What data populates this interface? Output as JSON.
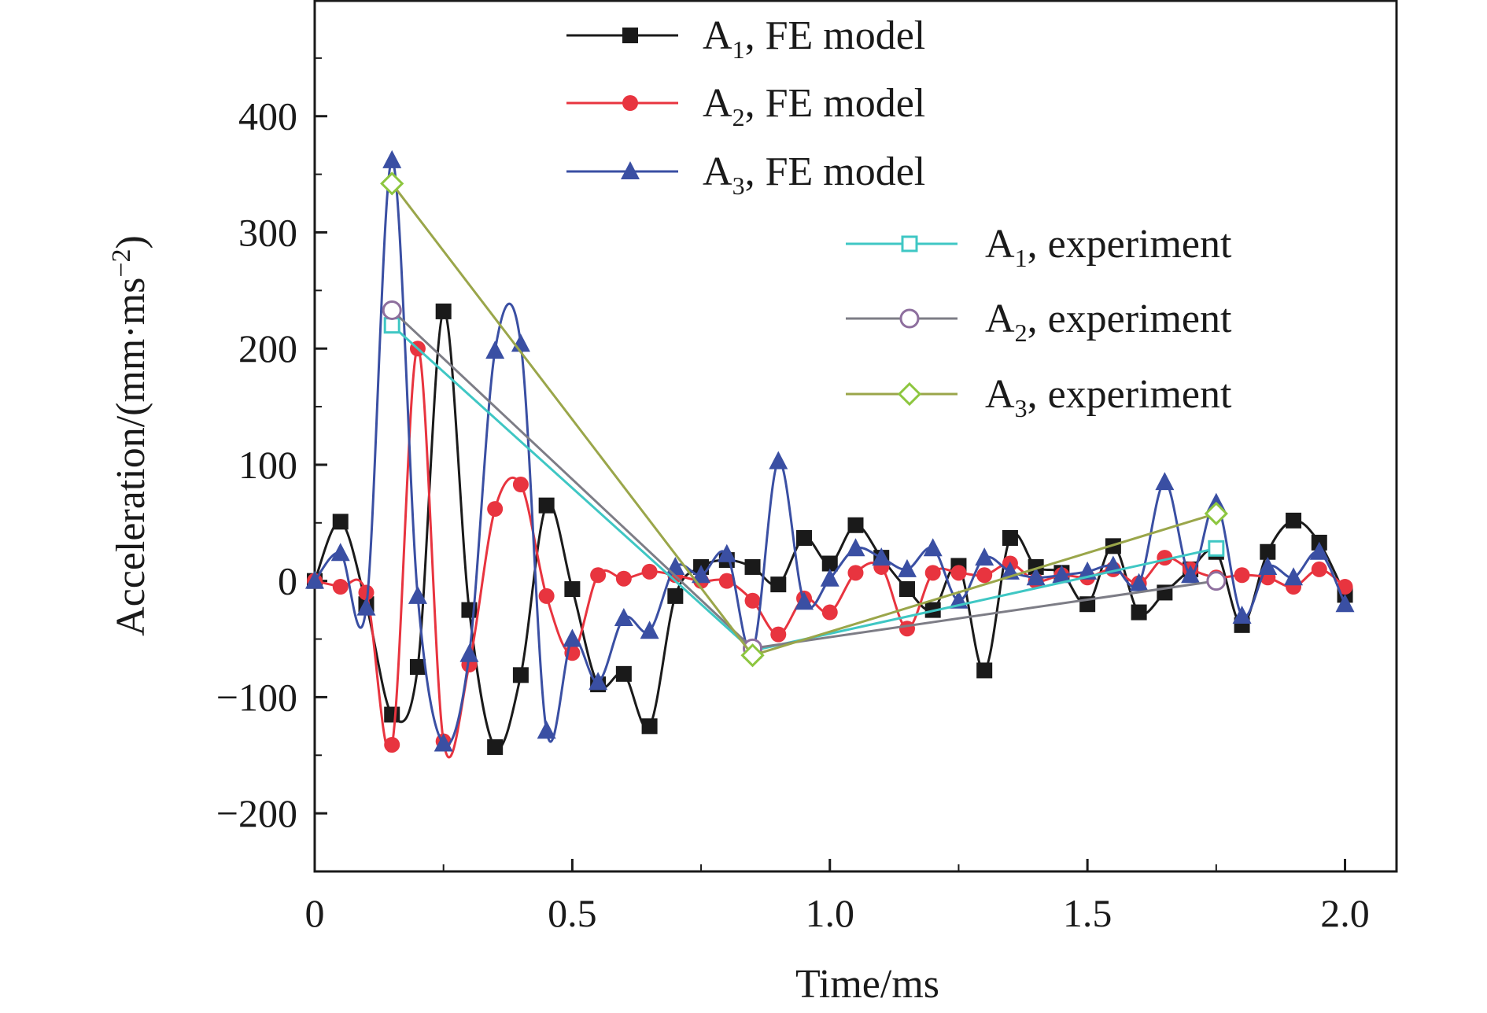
{
  "chart_data": {
    "type": "line",
    "title": "",
    "xlabel": "Time/ms",
    "ylabel": "Acceleration/(mm·ms",
    "ylabel_sup": "−2",
    "ylabel_close": ")",
    "xlim": [
      0,
      2.1
    ],
    "ylim": [
      -250,
      500
    ],
    "x_ticks": [
      0,
      0.5,
      1.0,
      1.5,
      2.0
    ],
    "x_tick_labels": [
      "0",
      "0.5",
      "1.0",
      "1.5",
      "2.0"
    ],
    "y_ticks": [
      -200,
      -100,
      0,
      100,
      200,
      300,
      400
    ],
    "y_tick_labels": [
      "−200",
      "−100",
      "0",
      "100",
      "200",
      "300",
      "400"
    ],
    "grid": false,
    "legend_placement": "top-center and right",
    "series": [
      {
        "name": "A1, FE model",
        "name_main": "A",
        "name_sub": "1",
        "name_rest": ", FE model",
        "color": "#1a1a1a",
        "marker": "square-filled",
        "x": [
          0,
          0.05,
          0.1,
          0.15,
          0.2,
          0.25,
          0.3,
          0.35,
          0.4,
          0.45,
          0.5,
          0.55,
          0.6,
          0.65,
          0.7,
          0.75,
          0.8,
          0.85,
          0.9,
          0.95,
          1.0,
          1.05,
          1.1,
          1.15,
          1.2,
          1.25,
          1.3,
          1.35,
          1.4,
          1.45,
          1.5,
          1.55,
          1.6,
          1.65,
          1.7,
          1.75,
          1.8,
          1.85,
          1.9,
          1.95,
          2.0
        ],
        "y": [
          0,
          51,
          -20,
          -115,
          -74,
          232,
          -25,
          -143,
          -81,
          65,
          -7,
          -89,
          -80,
          -125,
          -13,
          12,
          18,
          12,
          -3,
          37,
          15,
          48,
          20,
          -7,
          -25,
          13,
          -77,
          37,
          12,
          7,
          -20,
          30,
          -27,
          -10,
          10,
          25,
          -38,
          25,
          52,
          33,
          -12
        ]
      },
      {
        "name": "A2, FE model",
        "name_main": "A",
        "name_sub": "2",
        "name_rest": ", FE model",
        "color": "#e8343f",
        "marker": "circle-filled",
        "x": [
          0,
          0.05,
          0.1,
          0.15,
          0.2,
          0.25,
          0.3,
          0.35,
          0.4,
          0.45,
          0.5,
          0.55,
          0.6,
          0.65,
          0.7,
          0.75,
          0.8,
          0.85,
          0.9,
          0.95,
          1.0,
          1.05,
          1.1,
          1.15,
          1.2,
          1.25,
          1.3,
          1.35,
          1.4,
          1.45,
          1.5,
          1.55,
          1.6,
          1.65,
          1.7,
          1.75,
          1.8,
          1.85,
          1.9,
          1.95,
          2.0
        ],
        "y": [
          0,
          -5,
          -10,
          -141,
          200,
          -138,
          -72,
          62,
          83,
          -13,
          -62,
          5,
          2,
          8,
          5,
          0,
          0,
          -17,
          -46,
          -15,
          -27,
          7,
          12,
          -41,
          7,
          7,
          5,
          15,
          0,
          5,
          3,
          10,
          -2,
          20,
          10,
          3,
          5,
          3,
          -5,
          10,
          -5
        ]
      },
      {
        "name": "A3, FE model",
        "name_main": "A",
        "name_sub": "3",
        "name_rest": ", FE model",
        "color": "#3a4fa3",
        "marker": "triangle-filled",
        "x": [
          0,
          0.05,
          0.1,
          0.15,
          0.2,
          0.25,
          0.3,
          0.35,
          0.4,
          0.45,
          0.5,
          0.55,
          0.6,
          0.65,
          0.7,
          0.75,
          0.8,
          0.85,
          0.9,
          0.95,
          1.0,
          1.05,
          1.1,
          1.15,
          1.2,
          1.25,
          1.3,
          1.35,
          1.4,
          1.45,
          1.5,
          1.55,
          1.6,
          1.65,
          1.7,
          1.75,
          1.8,
          1.85,
          1.9,
          1.95,
          2.0
        ],
        "y": [
          0,
          24,
          -23,
          362,
          -13,
          -140,
          -63,
          198,
          204,
          -129,
          -50,
          -87,
          -32,
          -43,
          12,
          5,
          23,
          -60,
          103,
          -18,
          2,
          28,
          20,
          10,
          28,
          -17,
          20,
          8,
          3,
          5,
          8,
          13,
          -2,
          85,
          5,
          67,
          -30,
          12,
          3,
          25,
          -20
        ]
      },
      {
        "name": "A1, experiment",
        "name_main": "A",
        "name_sub": "1",
        "name_rest": ", experiment",
        "color": "#3fc7c4",
        "marker": "square-open",
        "x": [
          0.15,
          0.85,
          1.75
        ],
        "y": [
          220,
          -60,
          28
        ]
      },
      {
        "name": "A2, experiment",
        "name_main": "A",
        "name_sub": "2",
        "name_rest": ", experiment",
        "color": "#7d7d86",
        "marker": "circle-open",
        "x": [
          0.15,
          0.85,
          1.75
        ],
        "y": [
          233,
          -58,
          0
        ]
      },
      {
        "name": "A3, experiment",
        "name_main": "A",
        "name_sub": "3",
        "name_rest": ", experiment",
        "color": "#9aa64a",
        "marker": "diamond-open",
        "x": [
          0.15,
          0.85,
          1.75
        ],
        "y": [
          342,
          -64,
          58
        ]
      }
    ]
  },
  "marker_colors": {
    "A3, experiment": "#8dc63f",
    "A2, experiment": "#8e6f9e"
  }
}
